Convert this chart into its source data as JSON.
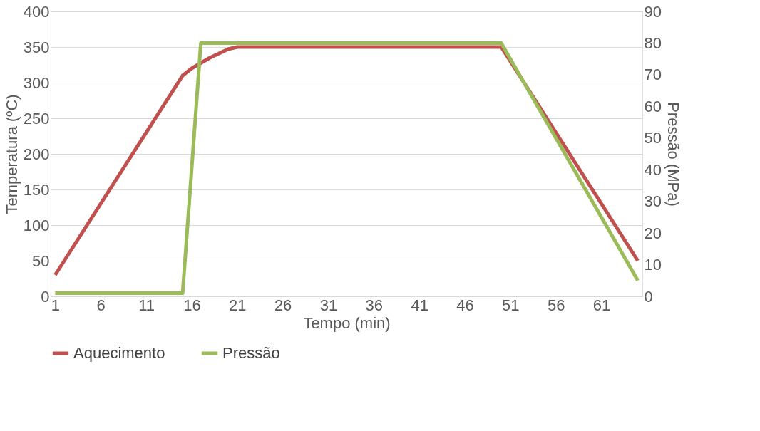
{
  "chart_data": {
    "type": "line",
    "xlabel": "Tempo (min)",
    "ylabel": "Temperatura (ºC)",
    "y2label": "Pressão (MPa)",
    "xlim": [
      0.5,
      65.5
    ],
    "xticks": [
      1,
      6,
      11,
      16,
      21,
      26,
      31,
      36,
      41,
      46,
      51,
      56,
      61
    ],
    "ylim": [
      0,
      400
    ],
    "yticks": [
      0,
      50,
      100,
      150,
      200,
      250,
      300,
      350,
      400
    ],
    "y2lim": [
      0,
      90
    ],
    "y2ticks": [
      0,
      10,
      20,
      30,
      40,
      50,
      60,
      70,
      80,
      90
    ],
    "grid": "y",
    "legend": "bottom",
    "marker": "none",
    "line_style": "solid",
    "series": [
      {
        "name": "Aquecimento",
        "color": "#c0504d",
        "x": [
          1,
          15,
          16,
          18,
          20,
          21,
          50,
          65
        ],
        "values": [
          30,
          310,
          320,
          335,
          347,
          350,
          350,
          50
        ]
      },
      {
        "name": "Pressão",
        "color": "#9bbb59",
        "axis": "y2",
        "x": [
          1,
          15,
          17,
          50,
          65
        ],
        "values": [
          1,
          1,
          80,
          80,
          5
        ]
      }
    ]
  }
}
